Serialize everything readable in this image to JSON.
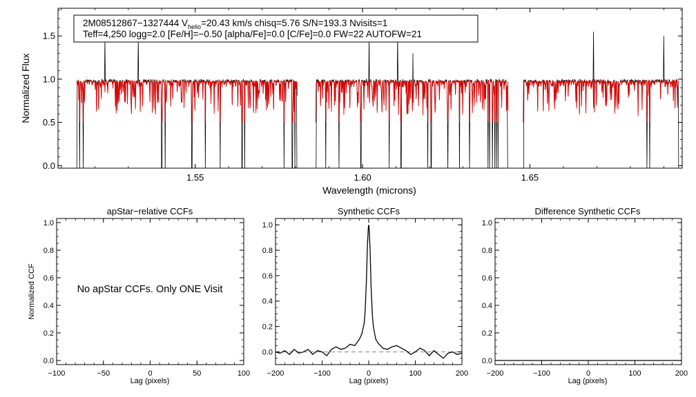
{
  "colors": {
    "observed": "#000000",
    "model": "#e00000",
    "axis": "#000000",
    "zero_line": "#888888"
  },
  "chart_data": [
    {
      "id": "spectrum",
      "type": "line",
      "title": "",
      "info_line1": {
        "star": "2M08512867−1327444",
        "v_prefix": "V",
        "v_sub": "helio",
        "v_rest": "=20.43 km/s  chisq=5.76  S/N=193.3  Nvisits=1"
      },
      "info_line2": "Teff=4,250 logg=2.0 [Fe/H]=−0.50 [alpha/Fe]=0.0 [C/Fe]=0.0 FW=22 AUTOFW=21",
      "xlabel": "Wavelength (microns)",
      "ylabel": "Normalized Flux",
      "xlim": [
        1.509,
        1.6955
      ],
      "ylim": [
        -0.03,
        1.82
      ],
      "xticks": [
        1.55,
        1.6,
        1.65
      ],
      "xtick_labels": [
        "1.55",
        "1.60",
        "1.65"
      ],
      "yticks": [
        0.0,
        0.5,
        1.0,
        1.5
      ],
      "ytick_labels": [
        "0.0",
        "0.5",
        "1.0",
        "1.5"
      ],
      "chips": [
        [
          1.5145,
          1.5805
        ],
        [
          1.586,
          1.6435
        ],
        [
          1.648,
          1.6945
        ]
      ],
      "series": [
        {
          "role": "observed",
          "continuum": 0.98
        },
        {
          "role": "model",
          "continuum": 0.975
        }
      ],
      "deep_lines": [
        1.5155,
        1.5165,
        1.54,
        1.541,
        1.549,
        1.553,
        1.5575,
        1.564,
        1.5648,
        1.5765,
        1.579,
        1.5798,
        1.586,
        1.589,
        1.593,
        1.5995,
        1.608,
        1.6115,
        1.6195,
        1.6205,
        1.6255,
        1.629,
        1.632,
        1.6375,
        1.638,
        1.6388,
        1.6395,
        1.64,
        1.6405,
        1.648,
        1.685,
        1.6858
      ],
      "emission_spikes": [
        [
          1.523,
          1.48
        ],
        [
          1.533,
          1.5
        ],
        [
          1.602,
          1.5
        ],
        [
          1.6105,
          1.52
        ],
        [
          1.615,
          1.3
        ],
        [
          1.669,
          1.55
        ],
        [
          1.69,
          1.5
        ]
      ]
    },
    {
      "id": "apstar-ccf",
      "type": "line",
      "title": "apStar−relative CCFs",
      "xlabel": "Lag (pixels)",
      "ylabel": "Normalized CCF",
      "xlim": [
        -100,
        100
      ],
      "ylim": [
        -0.03,
        1.03
      ],
      "xticks": [
        -100,
        -50,
        0,
        50,
        100
      ],
      "xtick_labels": [
        "−100",
        "−50",
        "0",
        "50",
        "100"
      ],
      "yticks": [
        0.0,
        0.2,
        0.4,
        0.6,
        0.8,
        1.0
      ],
      "ytick_labels": [
        "0.0",
        "0.2",
        "0.4",
        "0.6",
        "0.8",
        "1.0"
      ],
      "message": "No apStar CCFs.  Only ONE Visit"
    },
    {
      "id": "synthetic-ccf",
      "type": "line",
      "title": "Synthetic CCFs",
      "xlabel": "Lag (pixels)",
      "ylabel": "",
      "xlim": [
        -200,
        200
      ],
      "ylim": [
        -0.1,
        1.05
      ],
      "xticks": [
        -200,
        -100,
        0,
        100,
        200
      ],
      "xtick_labels": [
        "−200",
        "−100",
        "0",
        "100",
        "200"
      ],
      "yticks": [
        0.0,
        0.2,
        0.4,
        0.6,
        0.8,
        1.0
      ],
      "ytick_labels": [
        "0.0",
        "0.2",
        "0.4",
        "0.6",
        "0.8",
        "1.0"
      ],
      "zero_line": 0.0,
      "peak": {
        "x": 0,
        "y": 1.0
      },
      "series": [
        {
          "x": [
            -200,
            -190,
            -180,
            -170,
            -160,
            -150,
            -140,
            -130,
            -120,
            -110,
            -100,
            -90,
            -80,
            -70,
            -60,
            -50,
            -40,
            -30,
            -20,
            -15,
            -10,
            -8,
            -5,
            -3,
            -1,
            0,
            1,
            3,
            5,
            8,
            10,
            15,
            20,
            30,
            40,
            50,
            60,
            70,
            80,
            90,
            100,
            110,
            120,
            130,
            140,
            150,
            160,
            170,
            180,
            190,
            200
          ],
          "y": [
            0.0,
            -0.01,
            0.01,
            -0.02,
            0.02,
            -0.01,
            0.0,
            0.02,
            -0.02,
            0.01,
            0.0,
            -0.03,
            0.02,
            0.04,
            0.02,
            0.03,
            0.06,
            0.05,
            0.1,
            0.14,
            0.22,
            0.3,
            0.55,
            0.82,
            0.97,
            1.0,
            0.97,
            0.8,
            0.52,
            0.28,
            0.2,
            0.1,
            0.07,
            0.03,
            0.02,
            0.04,
            0.05,
            0.03,
            0.01,
            -0.02,
            0.0,
            0.03,
            0.01,
            -0.03,
            0.01,
            -0.02,
            -0.05,
            -0.01,
            0.0,
            -0.02,
            -0.01
          ]
        }
      ]
    },
    {
      "id": "difference-ccf",
      "type": "line",
      "title": "Difference Synthetic CCFs",
      "xlabel": "Lag (pixels)",
      "ylabel": "",
      "xlim": [
        -200,
        200
      ],
      "ylim": [
        -0.03,
        1.03
      ],
      "xticks": [
        -200,
        -100,
        0,
        100,
        200
      ],
      "xtick_labels": [
        "−200",
        "−100",
        "0",
        "100",
        "200"
      ],
      "yticks": [
        0.0,
        0.2,
        0.4,
        0.6,
        0.8,
        1.0
      ],
      "ytick_labels": [
        "0.0",
        "0.2",
        "0.4",
        "0.6",
        "0.8",
        "1.0"
      ],
      "series": [
        {
          "x": [
            -200,
            200
          ],
          "y": [
            0.0,
            0.0
          ]
        }
      ]
    }
  ]
}
